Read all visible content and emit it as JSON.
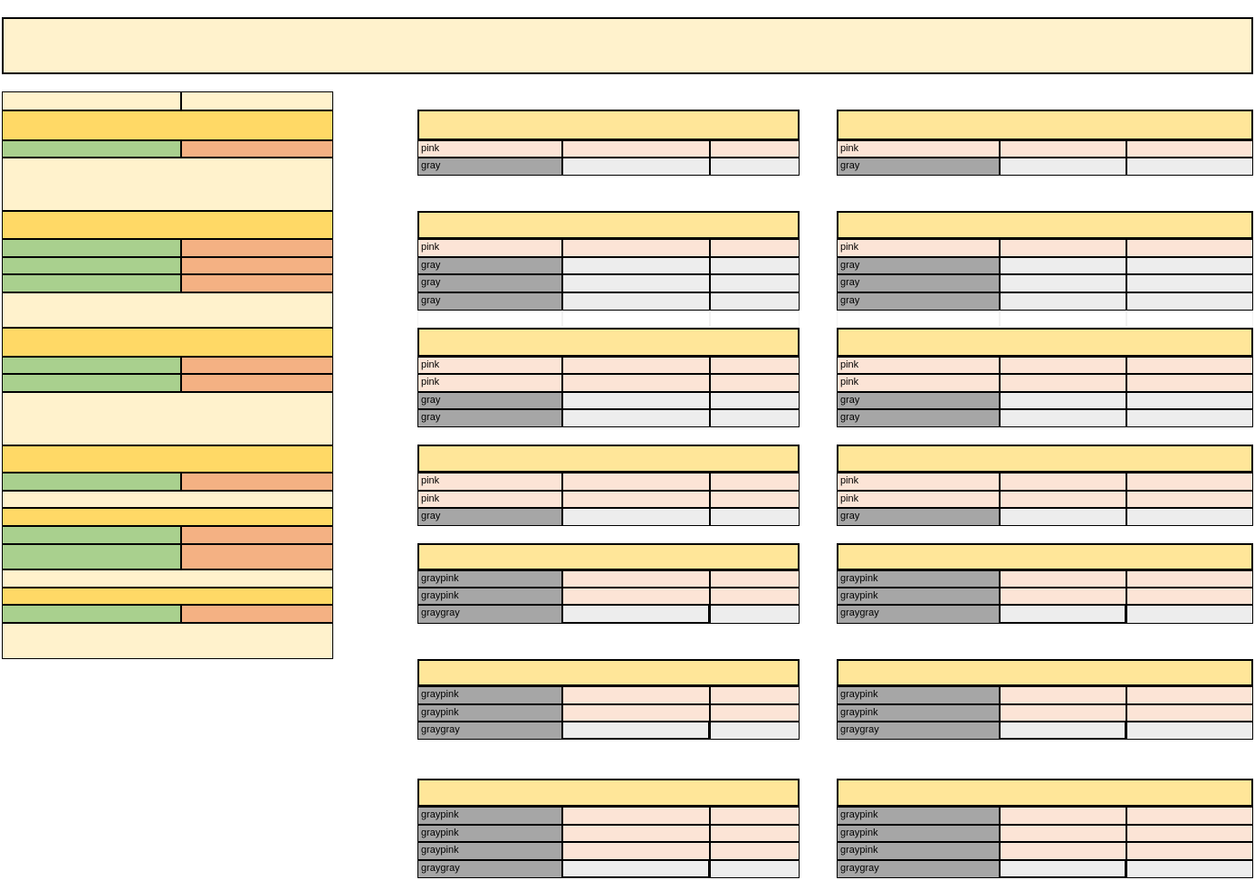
{
  "sheet": {
    "title": "",
    "colors": {
      "cream": "#fff2cc",
      "gold": "#ffd966",
      "green": "#a9d08e",
      "orange": "#f4b183",
      "header": "#ffe699",
      "pink": "#fce4d6",
      "gray": "#a6a6a6",
      "light_gray": "#ededed"
    },
    "left_panel": {
      "rows": [
        {
          "type": "split",
          "left": "",
          "right": "",
          "tone": "cream"
        },
        {
          "type": "full",
          "text": "",
          "tone": "gold"
        },
        {
          "type": "split",
          "left": "",
          "right": "",
          "tone": "green-orange"
        },
        {
          "type": "full",
          "text": "",
          "tone": "cream"
        },
        {
          "type": "full",
          "text": "",
          "tone": "gold"
        },
        {
          "type": "split",
          "left": "",
          "right": "",
          "tone": "green-orange"
        },
        {
          "type": "split",
          "left": "",
          "right": "",
          "tone": "green-orange"
        },
        {
          "type": "split",
          "left": "",
          "right": "",
          "tone": "green-orange"
        },
        {
          "type": "full",
          "text": "",
          "tone": "cream"
        },
        {
          "type": "full",
          "text": "",
          "tone": "gold"
        },
        {
          "type": "split",
          "left": "",
          "right": "",
          "tone": "green-orange"
        },
        {
          "type": "split",
          "left": "",
          "right": "",
          "tone": "green-orange"
        },
        {
          "type": "full",
          "text": "",
          "tone": "cream"
        },
        {
          "type": "full",
          "text": "",
          "tone": "gold"
        },
        {
          "type": "split",
          "left": "",
          "right": "",
          "tone": "green-orange"
        },
        {
          "type": "full",
          "text": "",
          "tone": "cream"
        },
        {
          "type": "full",
          "text": "",
          "tone": "gold"
        },
        {
          "type": "split",
          "left": "",
          "right": "",
          "tone": "green-orange"
        },
        {
          "type": "split",
          "left": "",
          "right": "",
          "tone": "green-orange"
        },
        {
          "type": "full",
          "text": "",
          "tone": "cream"
        },
        {
          "type": "full",
          "text": "",
          "tone": "gold"
        },
        {
          "type": "split",
          "left": "",
          "right": "",
          "tone": "green-orange"
        },
        {
          "type": "full",
          "text": "",
          "tone": "cream"
        }
      ]
    },
    "blocks": [
      {
        "header": "",
        "rows": [
          [
            "pink",
            "",
            ""
          ],
          [
            "gray",
            "",
            ""
          ]
        ]
      },
      {
        "header": "",
        "rows": [
          [
            "pink",
            "",
            ""
          ],
          [
            "gray",
            "",
            ""
          ]
        ]
      },
      {
        "header": "",
        "rows": [
          [
            "pink",
            "",
            ""
          ],
          [
            "gray",
            "",
            ""
          ],
          [
            "gray",
            "",
            ""
          ],
          [
            "gray",
            "",
            ""
          ]
        ]
      },
      {
        "header": "",
        "rows": [
          [
            "pink",
            "",
            ""
          ],
          [
            "gray",
            "",
            ""
          ],
          [
            "gray",
            "",
            ""
          ],
          [
            "gray",
            "",
            ""
          ]
        ]
      },
      {
        "header": "",
        "rows": [
          [
            "pink",
            "",
            ""
          ],
          [
            "pink",
            "",
            ""
          ],
          [
            "gray",
            "",
            ""
          ],
          [
            "gray",
            "",
            ""
          ]
        ]
      },
      {
        "header": "",
        "rows": [
          [
            "pink",
            "",
            ""
          ],
          [
            "pink",
            "",
            ""
          ],
          [
            "gray",
            "",
            ""
          ],
          [
            "gray",
            "",
            ""
          ]
        ]
      },
      {
        "header": "",
        "rows": [
          [
            "pink",
            "",
            ""
          ],
          [
            "pink",
            "",
            ""
          ],
          [
            "gray",
            "",
            ""
          ]
        ]
      },
      {
        "header": "",
        "rows": [
          [
            "pink",
            "",
            ""
          ],
          [
            "pink",
            "",
            ""
          ],
          [
            "gray",
            "",
            ""
          ]
        ]
      },
      {
        "header": "",
        "rows": [
          [
            "graypink",
            "",
            ""
          ],
          [
            "graypink",
            "",
            ""
          ],
          [
            "graygray",
            "",
            ""
          ]
        ]
      },
      {
        "header": "",
        "rows": [
          [
            "graypink",
            "",
            ""
          ],
          [
            "graypink",
            "",
            ""
          ],
          [
            "graygray",
            "",
            ""
          ]
        ]
      },
      {
        "header": "",
        "rows": [
          [
            "graypink",
            "",
            ""
          ],
          [
            "graypink",
            "",
            ""
          ],
          [
            "graygray",
            "",
            ""
          ]
        ]
      },
      {
        "header": "",
        "rows": [
          [
            "graypink",
            "",
            ""
          ],
          [
            "graypink",
            "",
            ""
          ],
          [
            "graygray",
            "",
            ""
          ]
        ]
      },
      {
        "header": "",
        "rows": [
          [
            "graypink",
            "",
            ""
          ],
          [
            "graypink",
            "",
            ""
          ],
          [
            "graypink",
            "",
            ""
          ],
          [
            "graygray",
            "",
            ""
          ]
        ]
      },
      {
        "header": "",
        "rows": [
          [
            "graypink",
            "",
            ""
          ],
          [
            "graypink",
            "",
            ""
          ],
          [
            "graypink",
            "",
            ""
          ],
          [
            "graygray",
            "",
            ""
          ]
        ]
      }
    ]
  }
}
